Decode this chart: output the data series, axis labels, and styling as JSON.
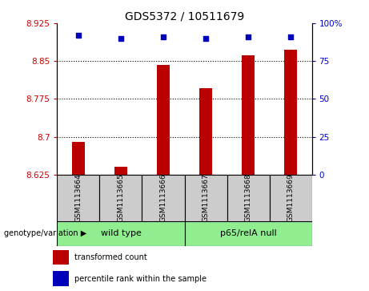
{
  "title": "GDS5372 / 10511679",
  "samples": [
    "GSM1113664",
    "GSM1113665",
    "GSM1113666",
    "GSM1113667",
    "GSM1113668",
    "GSM1113669"
  ],
  "transformed_count": [
    8.69,
    8.64,
    8.843,
    8.797,
    8.862,
    8.872
  ],
  "percentile_rank": [
    92,
    90,
    91,
    90,
    91,
    91
  ],
  "ylim_left": [
    8.625,
    8.925
  ],
  "ylim_right": [
    0,
    100
  ],
  "yticks_left": [
    8.625,
    8.7,
    8.775,
    8.85,
    8.925
  ],
  "yticks_right": [
    0,
    25,
    50,
    75,
    100
  ],
  "bar_color": "#bb0000",
  "dot_color": "#0000bb",
  "bar_width": 0.3,
  "groups": [
    {
      "label": "wild type",
      "indices": [
        0,
        1,
        2
      ],
      "color": "#90ee90"
    },
    {
      "label": "p65/relA null",
      "indices": [
        3,
        4,
        5
      ],
      "color": "#90ee90"
    }
  ],
  "group_label_prefix": "genotype/variation",
  "legend_entries": [
    "transformed count",
    "percentile rank within the sample"
  ],
  "background_color": "#ffffff",
  "plot_bg_color": "#ffffff",
  "tick_label_color_left": "#cc0000",
  "tick_label_color_right": "#0000cc",
  "xlabel_area_color": "#cccccc",
  "grid_color": "#000000",
  "title_fontsize": 10,
  "tick_fontsize": 7.5,
  "sample_fontsize": 6.5,
  "group_fontsize": 8,
  "legend_fontsize": 7
}
